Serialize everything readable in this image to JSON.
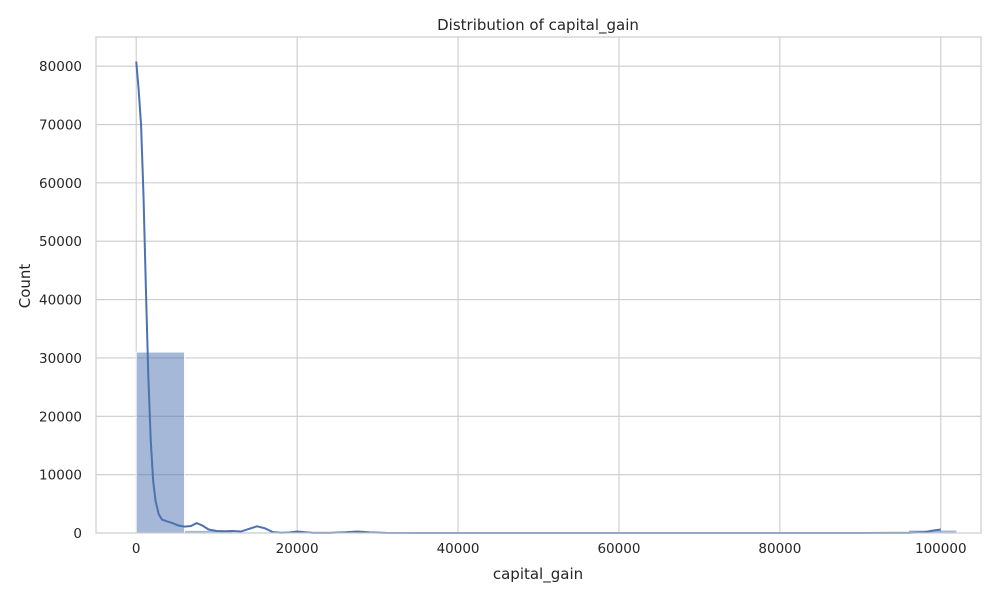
{
  "chart_data": {
    "type": "histogram",
    "title": "Distribution of capital_gain",
    "xlabel": "capital_gain",
    "ylabel": "Count",
    "xlim": [
      -4999.95,
      104998.95
    ],
    "ylim": [
      0,
      85000
    ],
    "xticks": [
      0,
      20000,
      40000,
      60000,
      80000,
      100000
    ],
    "yticks": [
      0,
      10000,
      20000,
      30000,
      40000,
      50000,
      60000,
      70000,
      80000
    ],
    "grid": true,
    "bars": {
      "color": "#4c72b0",
      "opacity": 0.5,
      "bin_width": 5999.94,
      "x_start": 0,
      "values": [
        31000,
        450,
        180,
        60,
        40,
        15,
        10,
        8,
        5,
        3,
        2,
        2,
        1,
        1,
        0,
        0,
        500
      ]
    },
    "kde": {
      "color": "#4c72b0",
      "x": [
        0,
        300,
        600,
        900,
        1200,
        1500,
        1800,
        2100,
        2400,
        2800,
        3200,
        3800,
        4500,
        5200,
        6000,
        6800,
        7500,
        8200,
        9000,
        10000,
        11000,
        12000,
        13000,
        14000,
        15000,
        16000,
        17000,
        18000,
        19000,
        20000,
        21000,
        22000,
        24000,
        26000,
        27500,
        29000,
        31000,
        35000,
        40000,
        50000,
        60000,
        70000,
        80000,
        90000,
        96000,
        98000,
        99000,
        99999
      ],
      "y": [
        80800,
        76000,
        70000,
        58000,
        42000,
        27000,
        16000,
        9000,
        5500,
        3200,
        2300,
        2000,
        1700,
        1300,
        1100,
        1200,
        1700,
        1300,
        600,
        350,
        300,
        350,
        250,
        700,
        1150,
        800,
        150,
        50,
        80,
        250,
        120,
        30,
        20,
        120,
        250,
        100,
        20,
        10,
        5,
        0,
        0,
        0,
        0,
        0,
        20,
        150,
        400,
        600
      ]
    }
  }
}
